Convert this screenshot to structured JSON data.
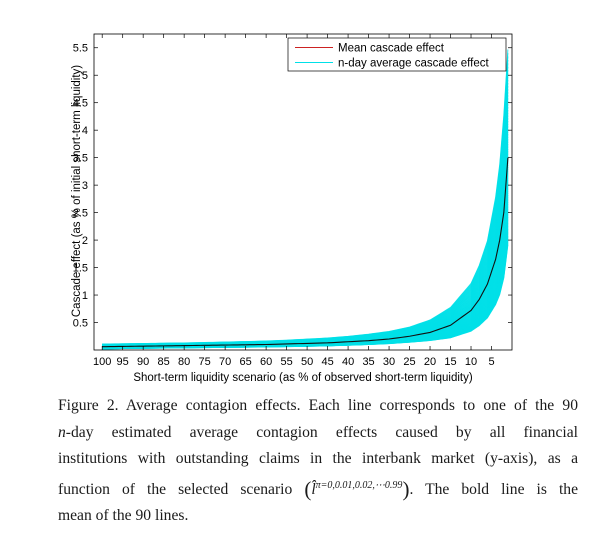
{
  "chart_data": {
    "type": "line",
    "title": "",
    "xlabel": "Short-term liquidity scenario (as % of observed short-term liquidity)",
    "ylabel": "Cascade effect (as % of initial short-term liquidity)",
    "x_reversed": true,
    "xlim": [
      102,
      0
    ],
    "ylim": [
      0,
      5.75
    ],
    "x_ticks": [
      100,
      95,
      90,
      85,
      80,
      75,
      70,
      65,
      60,
      55,
      50,
      45,
      40,
      35,
      30,
      25,
      20,
      15,
      10,
      5
    ],
    "x_tick_labels": [
      "100",
      "95",
      "90",
      "85",
      "80",
      "75",
      "70",
      "65",
      "60",
      "55",
      "50",
      "45",
      "40",
      "35",
      "30",
      "25",
      "20",
      "15",
      "10",
      "5"
    ],
    "y_ticks": [
      0.5,
      1,
      1.5,
      2,
      2.5,
      3,
      3.5,
      4,
      4.5,
      5,
      5.5
    ],
    "y_tick_labels": [
      "0.5",
      "1",
      "1.5",
      "2",
      "2.5",
      "3",
      "3.5",
      "4",
      "4.5",
      "5",
      "5.5"
    ],
    "grid": false,
    "legend_position": "top-right",
    "legend": [
      {
        "label": "Mean cascade effect",
        "color": "#cc2222"
      },
      {
        "label": "n-day average cascade effect",
        "color": "#00e0e8"
      }
    ],
    "series": [
      {
        "name": "Mean cascade effect",
        "color": "#111111",
        "x": [
          100,
          95,
          90,
          85,
          80,
          75,
          70,
          65,
          60,
          55,
          50,
          45,
          40,
          35,
          30,
          25,
          20,
          15,
          10,
          8,
          6,
          4,
          3,
          2,
          1
        ],
        "y": [
          0.06,
          0.065,
          0.07,
          0.075,
          0.08,
          0.085,
          0.09,
          0.095,
          0.1,
          0.11,
          0.12,
          0.13,
          0.15,
          0.17,
          0.2,
          0.25,
          0.32,
          0.45,
          0.72,
          0.92,
          1.2,
          1.65,
          2.0,
          2.5,
          3.5
        ]
      },
      {
        "name": "n-day average cascade effect",
        "color": "#00e0e8",
        "band_lower": [
          0.02,
          0.025,
          0.03,
          0.034,
          0.038,
          0.042,
          0.046,
          0.05,
          0.055,
          0.06,
          0.066,
          0.074,
          0.085,
          0.098,
          0.115,
          0.14,
          0.17,
          0.22,
          0.34,
          0.44,
          0.58,
          0.82,
          1.0,
          1.3,
          1.9
        ],
        "band_upper": [
          0.11,
          0.115,
          0.12,
          0.125,
          0.13,
          0.138,
          0.146,
          0.155,
          0.165,
          0.18,
          0.2,
          0.22,
          0.25,
          0.29,
          0.34,
          0.42,
          0.55,
          0.78,
          1.22,
          1.55,
          2.0,
          2.8,
          3.4,
          4.3,
          5.5
        ]
      }
    ]
  },
  "caption": {
    "line1": "Figure 2. Average contagion effects. Each line corresponds to one of the 90",
    "line2_var": "n",
    "line2_rest": "-day estimated average contagion effects caused by all financial",
    "line3": "institutions with outstanding claims in the interbank market (y-axis), as a",
    "line4_pre": "function of the selected scenario ",
    "line4_symbol": "l̂",
    "line4_sup": "π=0,0.01,0.02,⋯0.99",
    "line4_post": ". The bold line is the",
    "line5": "mean of the 90 lines."
  }
}
